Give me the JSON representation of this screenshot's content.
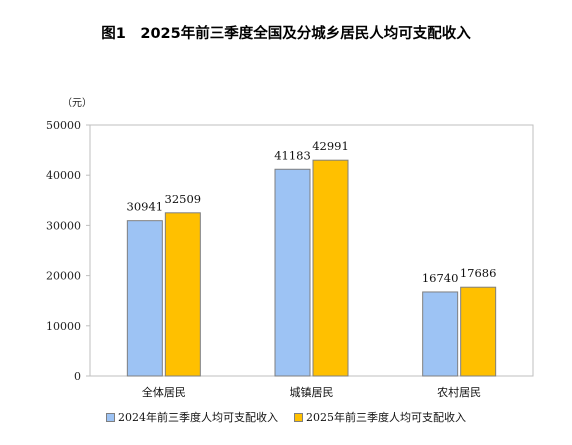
{
  "chart_data": {
    "type": "bar",
    "title": "图1　2025年前三季度全国及分城乡居民人均可支配收入",
    "unit_label": "（元）",
    "categories": [
      "全体居民",
      "城镇居民",
      "农村居民"
    ],
    "series": [
      {
        "name": "2024年前三季度人均可支配收入",
        "values": [
          30941,
          41183,
          16740
        ],
        "color": "#9DC3F4"
      },
      {
        "name": "2025年前三季度人均可支配收入",
        "values": [
          32509,
          42991,
          17686
        ],
        "color": "#FFC000"
      }
    ],
    "ylim": [
      0,
      50000
    ],
    "yticks": [
      0,
      10000,
      20000,
      30000,
      40000,
      50000
    ],
    "grid": false,
    "legend_position": "bottom"
  }
}
